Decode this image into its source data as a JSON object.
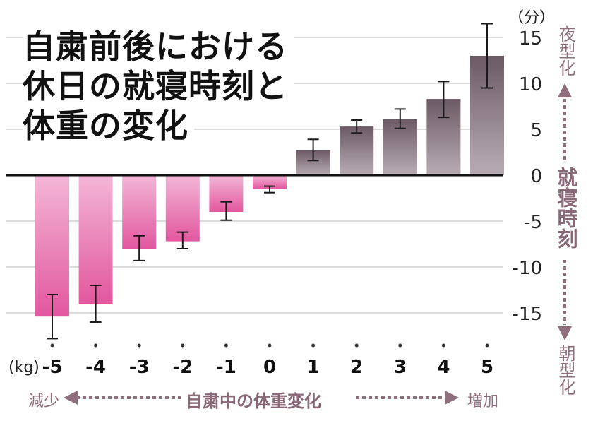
{
  "title": {
    "lines": [
      "自粛前後における",
      "休日の就寝時刻と",
      "体重の変化"
    ]
  },
  "y_unit_label": "（分）",
  "x_unit_label": "(kg)",
  "right_axis": {
    "top_label": "夜型化",
    "middle_label": "就寝時刻",
    "bottom_label": "朝型化"
  },
  "bottom_axis": {
    "left_label": "減少",
    "middle_label": "自粛中の体重変化",
    "right_label": "増加"
  },
  "colors": {
    "negative_bar_top": "#f3b7d6",
    "negative_bar_bottom": "#e2579f",
    "positive_bar_top": "#6b5a64",
    "positive_bar_bottom": "#b9adb5",
    "axis_arrow": "#8f6e7d",
    "grid": "#d0d0d0"
  },
  "chart_data": {
    "type": "bar",
    "xlabel": "自粛中の体重変化",
    "ylabel": "就寝時刻",
    "x_unit": "kg",
    "y_unit": "分",
    "categories": [
      "-5",
      "-4",
      "-3",
      "-2",
      "-1",
      "0",
      "1",
      "2",
      "3",
      "4",
      "5"
    ],
    "values": [
      -15.4,
      -14.0,
      -8.0,
      -7.2,
      -4.0,
      -1.5,
      2.7,
      5.3,
      6.1,
      8.3,
      13.0
    ],
    "error_low": [
      -17.8,
      -16.0,
      -9.3,
      -8.0,
      -4.9,
      -1.9,
      1.6,
      4.6,
      5.1,
      6.3,
      9.5
    ],
    "error_high": [
      -13.0,
      -12.0,
      -6.6,
      -6.2,
      -2.9,
      -1.2,
      3.9,
      6.0,
      7.2,
      10.2,
      16.5
    ],
    "yticks": [
      15,
      10,
      5,
      0,
      -5,
      -10,
      -15
    ],
    "ytick_labels": [
      "15",
      "10",
      "5",
      "0",
      "-5",
      "-10",
      "-15"
    ],
    "ylim": [
      -18,
      17
    ],
    "grid": true
  }
}
